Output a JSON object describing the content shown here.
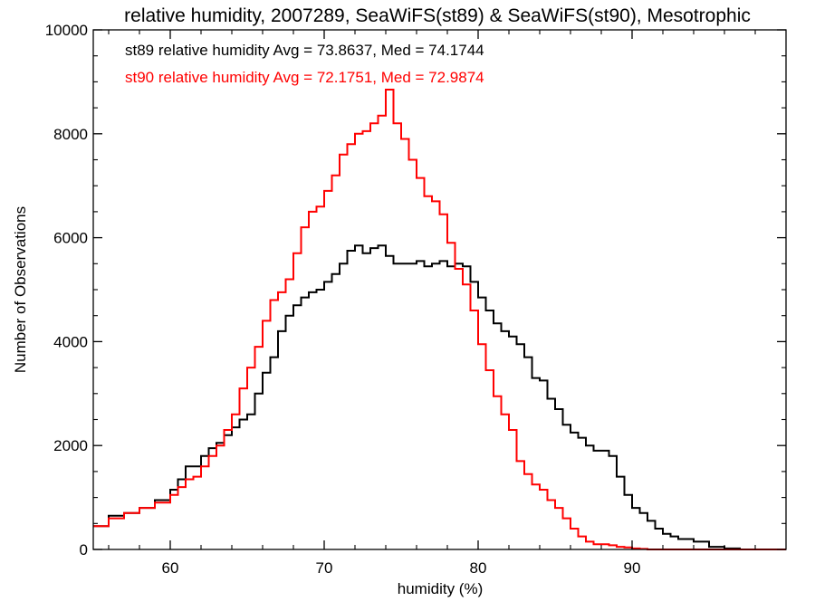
{
  "chart_data": {
    "type": "line",
    "style": "histogram-step",
    "title": "relative humidity, 2007289, SeaWiFS(st89) & SeaWiFS(st90), Mesotrophic",
    "xlabel": "humidity (%)",
    "ylabel": "Number of Observations",
    "xlim": [
      55,
      100
    ],
    "ylim": [
      0,
      10000
    ],
    "xticks": [
      60,
      70,
      80,
      90
    ],
    "yticks": [
      0,
      2000,
      4000,
      6000,
      8000,
      10000
    ],
    "grid": false,
    "annotations": [
      {
        "text": "st89 relative humidity Avg = 73.8637, Med = 74.1744",
        "color": "#000000"
      },
      {
        "text": "st90 relative humidity Avg = 72.1751, Med = 72.9874",
        "color": "#ff0000"
      }
    ],
    "series": [
      {
        "key": "st89",
        "color": "#000000",
        "x": [
          55,
          56,
          57,
          58,
          59,
          60,
          60.5,
          61,
          61.5,
          62,
          62.5,
          63,
          63.5,
          64,
          64.5,
          65,
          65.5,
          66,
          66.5,
          67,
          67.5,
          68,
          68.5,
          69,
          69.5,
          70,
          70.5,
          71,
          71.5,
          72,
          72.5,
          73,
          73.5,
          74,
          74.5,
          75,
          75.5,
          76,
          76.5,
          77,
          77.5,
          78,
          78.5,
          79,
          79.5,
          80,
          80.5,
          81,
          81.5,
          82,
          82.5,
          83,
          83.5,
          84,
          84.5,
          85,
          85.5,
          86,
          86.5,
          87,
          87.5,
          88,
          88.5,
          89,
          89.5,
          90,
          90.5,
          91,
          91.5,
          92,
          92.5,
          93,
          94,
          95,
          96,
          97,
          98,
          99,
          100
        ],
        "y": [
          450,
          650,
          700,
          800,
          950,
          1150,
          1350,
          1600,
          1600,
          1800,
          1950,
          2050,
          2200,
          2350,
          2500,
          2600,
          3000,
          3400,
          3700,
          4200,
          4500,
          4700,
          4850,
          4950,
          5000,
          5150,
          5300,
          5500,
          5750,
          5850,
          5700,
          5800,
          5850,
          5650,
          5500,
          5500,
          5500,
          5550,
          5450,
          5500,
          5550,
          5450,
          5500,
          5450,
          5150,
          4850,
          4600,
          4350,
          4200,
          4100,
          3950,
          3700,
          3300,
          3250,
          2900,
          2700,
          2400,
          2250,
          2150,
          2000,
          1900,
          1900,
          1800,
          1400,
          1050,
          800,
          700,
          550,
          400,
          300,
          250,
          200,
          150,
          50,
          20,
          0,
          0,
          0,
          0
        ]
      },
      {
        "key": "st90",
        "color": "#ff0000",
        "x": [
          55,
          56,
          57,
          58,
          59,
          60,
          60.5,
          61,
          61.5,
          62,
          62.5,
          63,
          63.5,
          64,
          64.5,
          65,
          65.5,
          66,
          66.5,
          67,
          67.5,
          68,
          68.5,
          69,
          69.5,
          70,
          70.5,
          71,
          71.5,
          72,
          72.5,
          73,
          73.5,
          74,
          74.5,
          75,
          75.5,
          76,
          76.5,
          77,
          77.5,
          78,
          78.5,
          79,
          79.5,
          80,
          80.5,
          81,
          81.5,
          82,
          82.5,
          83,
          83.5,
          84,
          84.5,
          85,
          85.5,
          86,
          86.5,
          87,
          87.5,
          88,
          88.5,
          89,
          89.5,
          90,
          90.5,
          91,
          91.5,
          92,
          92.5,
          93,
          94,
          95,
          96,
          97,
          98,
          99,
          100
        ],
        "y": [
          450,
          600,
          700,
          800,
          900,
          1050,
          1200,
          1350,
          1400,
          1600,
          1800,
          2000,
          2300,
          2600,
          3100,
          3500,
          3900,
          4400,
          4800,
          4950,
          5200,
          5700,
          6200,
          6500,
          6600,
          6900,
          7200,
          7600,
          7800,
          8000,
          8050,
          8200,
          8350,
          8850,
          8200,
          7900,
          7500,
          7150,
          6800,
          6700,
          6450,
          5900,
          5400,
          5100,
          4600,
          3950,
          3450,
          2950,
          2600,
          2300,
          1700,
          1450,
          1250,
          1150,
          950,
          800,
          600,
          400,
          250,
          150,
          100,
          100,
          80,
          50,
          40,
          20,
          10,
          0,
          0,
          0,
          0,
          0,
          0,
          0,
          0,
          0,
          0,
          0,
          0
        ]
      }
    ]
  }
}
